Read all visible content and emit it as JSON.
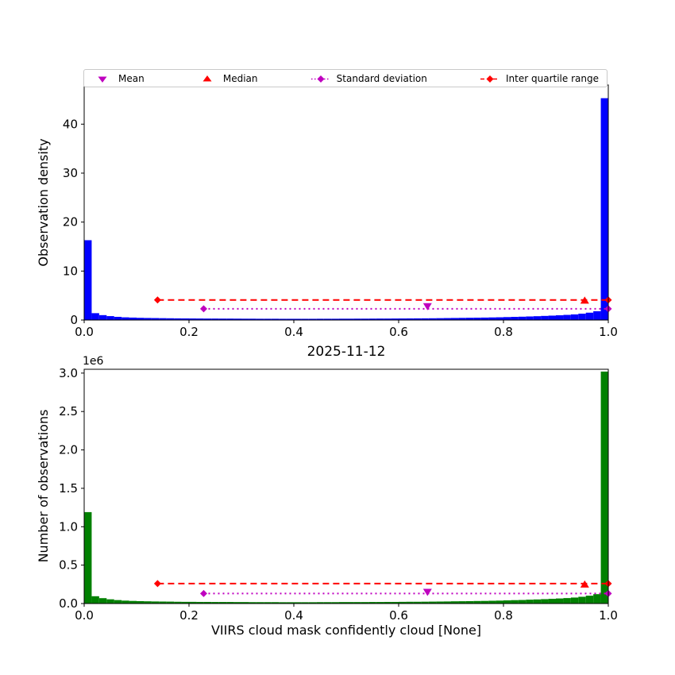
{
  "figure": {
    "background": "#ffffff"
  },
  "colors": {
    "mean": "#bf00bf",
    "median": "#ff0000",
    "std_dev": "#bf00bf",
    "iqr": "#ff0000",
    "axes": "#000000"
  },
  "legend": {
    "items": [
      {
        "label": "Mean",
        "marker": "triangle-down",
        "color": "#bf00bf"
      },
      {
        "label": "Median",
        "marker": "triangle-up",
        "color": "#ff0000"
      },
      {
        "label": "Standard deviation",
        "marker": "diamond-dotted-line",
        "color": "#bf00bf"
      },
      {
        "label": "Inter quartile range",
        "marker": "diamond-dashed-line",
        "color": "#ff0000"
      }
    ]
  },
  "chart_data": [
    {
      "type": "bar",
      "name": "observation-density-histogram",
      "ylabel": "Observation density",
      "bar_color": "#0000ff",
      "xlim": [
        0,
        1
      ],
      "ylim": [
        0,
        48
      ],
      "grid": false,
      "xticks": [
        {
          "v": 0.0,
          "label": "0.0"
        },
        {
          "v": 0.2,
          "label": "0.2"
        },
        {
          "v": 0.4,
          "label": "0.4"
        },
        {
          "v": 0.6,
          "label": "0.6"
        },
        {
          "v": 0.8,
          "label": "0.8"
        },
        {
          "v": 1.0,
          "label": "1.0"
        }
      ],
      "yticks": [
        {
          "v": 0,
          "label": "0"
        },
        {
          "v": 10,
          "label": "10"
        },
        {
          "v": 20,
          "label": "20"
        },
        {
          "v": 30,
          "label": "30"
        },
        {
          "v": 40,
          "label": "40"
        }
      ],
      "values": [
        16.3,
        1.4,
        1.0,
        0.8,
        0.65,
        0.55,
        0.5,
        0.45,
        0.42,
        0.4,
        0.38,
        0.36,
        0.34,
        0.33,
        0.32,
        0.31,
        0.3,
        0.3,
        0.29,
        0.29,
        0.28,
        0.27,
        0.27,
        0.26,
        0.26,
        0.26,
        0.25,
        0.25,
        0.25,
        0.25,
        0.25,
        0.26,
        0.26,
        0.26,
        0.27,
        0.27,
        0.28,
        0.28,
        0.29,
        0.3,
        0.3,
        0.31,
        0.32,
        0.33,
        0.34,
        0.35,
        0.36,
        0.38,
        0.4,
        0.42,
        0.44,
        0.46,
        0.48,
        0.5,
        0.53,
        0.56,
        0.6,
        0.64,
        0.68,
        0.73,
        0.78,
        0.84,
        0.9,
        0.97,
        1.05,
        1.15,
        1.3,
        1.5,
        1.8,
        45.3
      ],
      "stats": {
        "mean_x": 0.655,
        "mean_y": 2.8,
        "median_x": 0.955,
        "median_y": 4.0,
        "std_x0": 0.228,
        "std_x1": 1.0,
        "std_y": 2.3,
        "iqr_x0": 0.14,
        "iqr_x1": 1.0,
        "iqr_y": 4.1
      }
    },
    {
      "type": "bar",
      "name": "observation-count-histogram",
      "title": "2025-11-12",
      "xlabel": "VIIRS cloud mask confidently cloud [None]",
      "ylabel": "Number of observations",
      "offset_text": "1e6",
      "bar_color": "#008000",
      "xlim": [
        0,
        1
      ],
      "ylim": [
        0,
        3050000
      ],
      "grid": false,
      "xticks": [
        {
          "v": 0.0,
          "label": "0.0"
        },
        {
          "v": 0.2,
          "label": "0.2"
        },
        {
          "v": 0.4,
          "label": "0.4"
        },
        {
          "v": 0.6,
          "label": "0.6"
        },
        {
          "v": 0.8,
          "label": "0.8"
        },
        {
          "v": 1.0,
          "label": "1.0"
        }
      ],
      "yticks": [
        {
          "v": 0,
          "label": "0.0"
        },
        {
          "v": 500000,
          "label": "0.5"
        },
        {
          "v": 1000000,
          "label": "1.0"
        },
        {
          "v": 1500000,
          "label": "1.5"
        },
        {
          "v": 2000000,
          "label": "2.0"
        },
        {
          "v": 2500000,
          "label": "2.5"
        },
        {
          "v": 3000000,
          "label": "3.0"
        }
      ],
      "values": [
        1190000,
        95000,
        70000,
        55000,
        45000,
        38000,
        34000,
        31000,
        29000,
        27000,
        26000,
        25000,
        23000,
        22000,
        22000,
        21000,
        21000,
        20000,
        20000,
        20000,
        19000,
        19000,
        18000,
        18000,
        18000,
        18000,
        17000,
        17000,
        17000,
        17000,
        17000,
        18000,
        18000,
        18000,
        19000,
        19000,
        19000,
        19000,
        20000,
        20000,
        21000,
        21000,
        22000,
        23000,
        23000,
        24000,
        25000,
        26000,
        27000,
        29000,
        30000,
        31000,
        33000,
        34000,
        36000,
        38000,
        41000,
        44000,
        46000,
        50000,
        53000,
        57000,
        61000,
        66000,
        71000,
        78000,
        88000,
        102000,
        122000,
        3020000
      ],
      "stats": {
        "mean_x": 0.655,
        "mean_y": 150000,
        "median_x": 0.955,
        "median_y": 250000,
        "std_x0": 0.228,
        "std_x1": 1.0,
        "std_y": 130000,
        "iqr_x0": 0.14,
        "iqr_x1": 1.0,
        "iqr_y": 260000
      }
    }
  ]
}
